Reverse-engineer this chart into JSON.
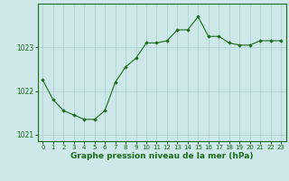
{
  "x": [
    0,
    1,
    2,
    3,
    4,
    5,
    6,
    7,
    8,
    9,
    10,
    11,
    12,
    13,
    14,
    15,
    16,
    17,
    18,
    19,
    20,
    21,
    22,
    23
  ],
  "y": [
    1022.25,
    1021.8,
    1021.55,
    1021.45,
    1021.35,
    1021.35,
    1021.55,
    1022.2,
    1022.55,
    1022.75,
    1023.1,
    1023.1,
    1023.15,
    1023.4,
    1023.4,
    1023.7,
    1023.25,
    1023.25,
    1023.1,
    1023.05,
    1023.05,
    1023.15,
    1023.15,
    1023.15
  ],
  "line_color": "#1a6b1a",
  "marker_color": "#1a6b1a",
  "bg_color": "#cce8e8",
  "grid_color": "#aacece",
  "border_color": "#1a6b1a",
  "xlabel": "Graphe pression niveau de la mer (hPa)",
  "xlabel_fontsize": 6.5,
  "xlabel_color": "#1a6b1a",
  "yticks": [
    1021,
    1022,
    1023
  ],
  "ylim": [
    1020.85,
    1024.0
  ],
  "xlim": [
    -0.5,
    23.5
  ],
  "xtick_labels": [
    "0",
    "1",
    "2",
    "3",
    "4",
    "5",
    "6",
    "7",
    "8",
    "9",
    "10",
    "11",
    "12",
    "13",
    "14",
    "15",
    "16",
    "17",
    "18",
    "19",
    "20",
    "21",
    "22",
    "23"
  ],
  "tick_color": "#1a6b1a",
  "tick_fontsize": 5.0,
  "ytick_fontsize": 5.5
}
